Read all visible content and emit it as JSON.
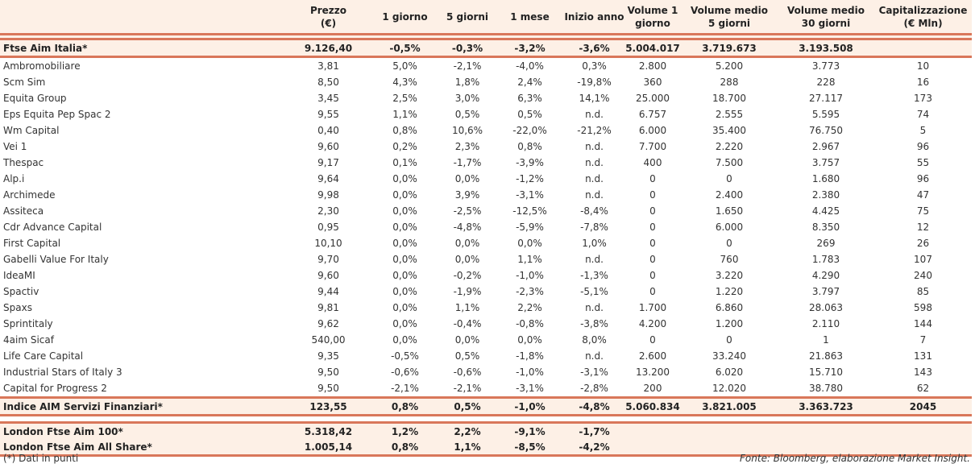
{
  "headers": [
    "",
    "Prezzo\n(€)",
    "1 giorno",
    "5 giorni",
    "1 mese",
    "Inizio anno",
    "Volume 1\ngiorno",
    "Volume medio\n5 giorni",
    "Volume medio\n30 giorni",
    "Capitalizzazione\n(€ Mln)"
  ],
  "index_top": [
    "Ftse Aim Italia*",
    "9.126,40",
    "-0,5%",
    "-0,3%",
    "-3,2%",
    "-3,6%",
    "5.004.017",
    "3.719.673",
    "3.193.508",
    ""
  ],
  "rows": [
    [
      "Ambromobiliare",
      "3,81",
      "5,0%",
      "-2,1%",
      "-4,0%",
      "0,3%",
      "2.800",
      "5.200",
      "3.773",
      "10"
    ],
    [
      "Scm Sim",
      "8,50",
      "4,3%",
      "1,8%",
      "2,4%",
      "-19,8%",
      "360",
      "288",
      "228",
      "16"
    ],
    [
      "Equita Group",
      "3,45",
      "2,5%",
      "3,0%",
      "6,3%",
      "14,1%",
      "25.000",
      "18.700",
      "27.117",
      "173"
    ],
    [
      "Eps Equita Pep Spac 2",
      "9,55",
      "1,1%",
      "0,5%",
      "0,5%",
      "n.d.",
      "6.757",
      "2.555",
      "5.595",
      "74"
    ],
    [
      "Wm Capital",
      "0,40",
      "0,8%",
      "10,6%",
      "-22,0%",
      "-21,2%",
      "6.000",
      "35.400",
      "76.750",
      "5"
    ],
    [
      "Vei 1",
      "9,60",
      "0,2%",
      "2,3%",
      "0,8%",
      "n.d.",
      "7.700",
      "2.220",
      "2.967",
      "96"
    ],
    [
      "Thespac",
      "9,17",
      "0,1%",
      "-1,7%",
      "-3,9%",
      "n.d.",
      "400",
      "7.500",
      "3.757",
      "55"
    ],
    [
      "Alp.i",
      "9,64",
      "0,0%",
      "0,0%",
      "-1,2%",
      "n.d.",
      "0",
      "0",
      "1.680",
      "96"
    ],
    [
      "Archimede",
      "9,98",
      "0,0%",
      "3,9%",
      "-3,1%",
      "n.d.",
      "0",
      "2.400",
      "2.380",
      "47"
    ],
    [
      "Assiteca",
      "2,30",
      "0,0%",
      "-2,5%",
      "-12,5%",
      "-8,4%",
      "0",
      "1.650",
      "4.425",
      "75"
    ],
    [
      "Cdr Advance Capital",
      "0,95",
      "0,0%",
      "-4,8%",
      "-5,9%",
      "-7,8%",
      "0",
      "6.000",
      "8.350",
      "12"
    ],
    [
      "First Capital",
      "10,10",
      "0,0%",
      "0,0%",
      "0,0%",
      "1,0%",
      "0",
      "0",
      "269",
      "26"
    ],
    [
      "Gabelli Value For Italy",
      "9,70",
      "0,0%",
      "0,0%",
      "1,1%",
      "n.d.",
      "0",
      "760",
      "1.783",
      "107"
    ],
    [
      "IdeaMI",
      "9,60",
      "0,0%",
      "-0,2%",
      "-1,0%",
      "-1,3%",
      "0",
      "3.220",
      "4.290",
      "240"
    ],
    [
      "Spactiv",
      "9,44",
      "0,0%",
      "-1,9%",
      "-2,3%",
      "-5,1%",
      "0",
      "1.220",
      "3.797",
      "85"
    ],
    [
      "Spaxs",
      "9,81",
      "0,0%",
      "1,1%",
      "2,2%",
      "n.d.",
      "1.700",
      "6.860",
      "28.063",
      "598"
    ],
    [
      "Sprintitaly",
      "9,62",
      "0,0%",
      "-0,4%",
      "-0,8%",
      "-3,8%",
      "4.200",
      "1.200",
      "2.110",
      "144"
    ],
    [
      "4aim Sicaf",
      "540,00",
      "0,0%",
      "0,0%",
      "0,0%",
      "8,0%",
      "0",
      "0",
      "1",
      "7"
    ],
    [
      "Life Care Capital",
      "9,35",
      "-0,5%",
      "0,5%",
      "-1,8%",
      "n.d.",
      "2.600",
      "33.240",
      "21.863",
      "131"
    ],
    [
      "Industrial Stars of Italy 3",
      "9,50",
      "-0,6%",
      "-0,6%",
      "-1,0%",
      "-3,1%",
      "13.200",
      "6.020",
      "15.710",
      "143"
    ],
    [
      "Capital for Progress 2",
      "9,50",
      "-2,1%",
      "-2,1%",
      "-3,1%",
      "-2,8%",
      "200",
      "12.020",
      "38.780",
      "62"
    ]
  ],
  "index_sector": [
    "Indice AIM Servizi Finanziari*",
    "123,55",
    "0,8%",
    "0,5%",
    "-1,0%",
    "-4,8%",
    "5.060.834",
    "3.821.005",
    "3.363.723",
    "2045"
  ],
  "london": [
    [
      "London Ftse Aim 100*",
      "5.318,42",
      "1,2%",
      "2,2%",
      "-9,1%",
      "-1,7%",
      "",
      "",
      "",
      ""
    ],
    [
      "London Ftse Aim All Share*",
      "1.005,14",
      "0,8%",
      "1,1%",
      "-8,5%",
      "-4,2%",
      "",
      "",
      "",
      ""
    ]
  ],
  "footer": {
    "note": "(*) Dati in punti",
    "source": "Fonte: Bloomberg, elaborazione Market Insight."
  }
}
